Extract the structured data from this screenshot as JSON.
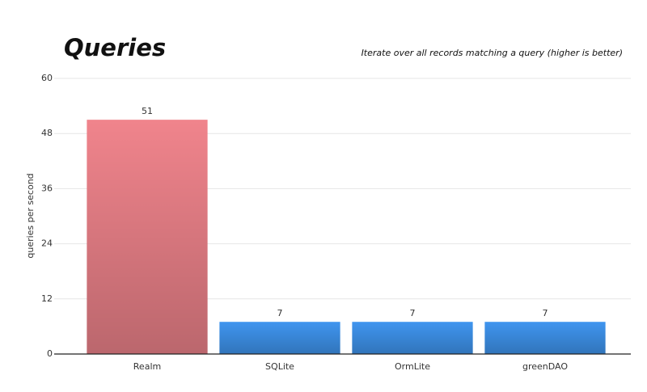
{
  "chart_data": {
    "type": "bar",
    "title": "Queries",
    "subtitle": "Iterate over all records matching a query (higher is better)",
    "y_label": "queries per second",
    "categories": [
      "Realm",
      "SQLite",
      "OrmLite",
      "greenDAO"
    ],
    "values": [
      51,
      7,
      7,
      7
    ],
    "colors": [
      "#f0848c",
      "#3f95ef",
      "#3f95ef",
      "#3f95ef"
    ],
    "ylim": [
      0,
      60
    ],
    "yticks": [
      0,
      12,
      24,
      36,
      48,
      60
    ],
    "grid": true
  }
}
